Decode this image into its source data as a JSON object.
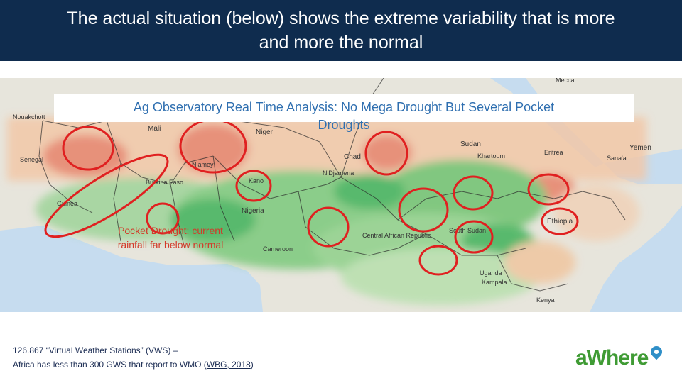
{
  "header": {
    "title_line1": "The actual situation (below) shows the extreme variability that is more",
    "title_line2": "and more the normal"
  },
  "map": {
    "title_line1": "Ag Observatory Real Time Analysis: No Mega Drought But Several Pocket",
    "title_line2": "Droughts",
    "annotation_line1": "Pocket Drought: current",
    "annotation_line2": "rainfall far below normal",
    "place_labels": {
      "mecca": "Mecca",
      "mali": "Mali",
      "niger": "Niger",
      "chad": "Chad",
      "sudan": "Sudan",
      "khartoum": "Khartoum",
      "eritrea": "Eritrea",
      "yemen": "Yemen",
      "senegal": "Senegal",
      "nigeria": "Nigeria",
      "burkina": "Burkina Faso",
      "ethiopia": "Ethiopia",
      "south_sudan": "South Sudan",
      "car": "Central African Republic",
      "cameroon": "Cameroon",
      "uganda": "Uganda",
      "kampala": "Kampala",
      "kenya": "Kenya",
      "guinea": "Guinea",
      "ndjamena": "N'Djamena",
      "kano": "Kano",
      "niamey": "Niamey",
      "nouakchott": "Nouakchott",
      "sanaa": "Sana'a"
    },
    "drought_pockets_count": 13,
    "colors": {
      "drought_circle": "#e02020",
      "land": "#e7e5dc",
      "sea": "#c6dcef",
      "dry_anomaly": "#e8836b",
      "wet_anomaly": "#3fb25a"
    }
  },
  "footer": {
    "line1": "126.867 “Virtual Weather Stations” (VWS) –",
    "line2_prefix": "Africa has less than 300 GWS that report to WMO  (",
    "line2_link": "WBG, 2018",
    "line2_suffix": ")"
  },
  "logo": {
    "text": "aWhere",
    "icon": "location-pin-icon",
    "color": "#3f9b34"
  }
}
